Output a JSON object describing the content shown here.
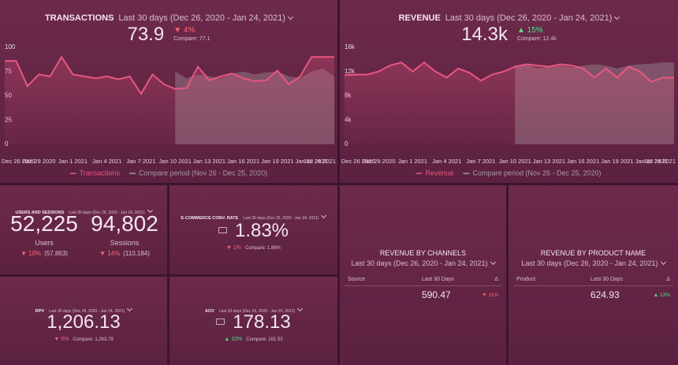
{
  "chart_data": [
    {
      "type": "line",
      "title": "TRANSACTIONS",
      "subtitle": "Last 30 days (Dec 26, 2020 - Jan 24, 2021)",
      "kpi": {
        "value": "73.9",
        "change": "▼ 4%",
        "trend": "down",
        "compare": "Compare: 77.1"
      },
      "categories": [
        "Dec 26 2020",
        null,
        null,
        "Dec 29 2020",
        null,
        null,
        "Jan 1 2021",
        null,
        null,
        "Jan 4 2021",
        null,
        null,
        "Jan 7 2021",
        null,
        null,
        "Jan 10 2021",
        null,
        null,
        "Jan 13 2021",
        null,
        null,
        "Jan 16 2021",
        null,
        null,
        "Jan 19 2021",
        null,
        null,
        "Jan 22 2021",
        null,
        "Jan 24 2021"
      ],
      "series": [
        {
          "name": "Transactions",
          "color": "#e8577f",
          "values": [
            86,
            86,
            60,
            72,
            70,
            90,
            72,
            70,
            68,
            70,
            67,
            70,
            52,
            72,
            62,
            57,
            58,
            80,
            66,
            70,
            73,
            68,
            65,
            66,
            76,
            62,
            70,
            90,
            90,
            90
          ]
        },
        {
          "name": "Compare period (Nov 26 - Dec 25, 2020)",
          "color": "#a89aa2",
          "values": [
            null,
            null,
            null,
            null,
            null,
            null,
            null,
            null,
            null,
            null,
            null,
            null,
            null,
            null,
            null,
            75,
            68,
            72,
            70,
            68,
            73,
            75,
            72,
            74,
            75,
            70,
            68,
            75,
            78,
            70
          ]
        }
      ],
      "ylim": [
        0,
        100
      ],
      "yticks": [
        0,
        25,
        50,
        75,
        100
      ],
      "legend": "bottom"
    },
    {
      "type": "line",
      "title": "REVENUE",
      "subtitle": "Last 30 days (Dec 26, 2020 - Jan 24, 2021)",
      "kpi": {
        "value": "14.3k",
        "change": "▲ 15%",
        "trend": "up",
        "compare": "Compare: 12.4k"
      },
      "categories": [
        "Dec 26 2020",
        null,
        null,
        "Dec 29 2020",
        null,
        null,
        "Jan 1 2021",
        null,
        null,
        "Jan 4 2021",
        null,
        null,
        "Jan 7 2021",
        null,
        null,
        "Jan 10 2021",
        null,
        null,
        "Jan 13 2021",
        null,
        null,
        "Jan 16 2021",
        null,
        null,
        "Jan 19 2021",
        null,
        null,
        "Jan 22 2021",
        null,
        "Jan 24 2021"
      ],
      "series": [
        {
          "name": "Revenue",
          "color": "#e8577f",
          "values": [
            11400,
            11500,
            11500,
            12000,
            13000,
            13500,
            12000,
            13500,
            12000,
            11000,
            12500,
            11800,
            10500,
            11500,
            12000,
            12800,
            13200,
            13000,
            12800,
            13200,
            13000,
            12500,
            11000,
            12500,
            11000,
            12800,
            12000,
            10300,
            11000,
            11000
          ]
        },
        {
          "name": "Compare period (Nov 26 - Dec 25, 2020)",
          "color": "#a89aa2",
          "values": [
            null,
            null,
            null,
            null,
            null,
            null,
            null,
            null,
            null,
            null,
            null,
            null,
            null,
            null,
            null,
            13000,
            13200,
            12500,
            12800,
            13000,
            12700,
            13000,
            13200,
            13000,
            12500,
            13000,
            13200,
            13300,
            13500,
            13500
          ]
        }
      ],
      "ylim": [
        0,
        16000
      ],
      "yticks": [
        0,
        {
          "value": 4000,
          "label": "4k"
        },
        {
          "value": 8000,
          "label": "8k"
        },
        {
          "value": 12000,
          "label": "12k"
        },
        {
          "value": 16000,
          "label": "16k"
        }
      ],
      "legend": "bottom"
    }
  ],
  "users_sessions": {
    "title": "USERS AND SESSIONS",
    "subtitle": "Last 30 days (Dec 26, 2020 - Jan 24, 2021)",
    "metrics": [
      {
        "value": "52,225",
        "label": "Users",
        "change": "▼ 10%",
        "trend": "down",
        "compare": "(57,863)"
      },
      {
        "value": "94,802",
        "label": "Sessions",
        "change": "▼ 14%",
        "trend": "down",
        "compare": "(110,184)"
      }
    ]
  },
  "kpis": [
    {
      "title": "E-COMMERCE CONV. RATE",
      "subtitle": "Last 30 days (Dec 26, 2020 - Jan 24, 2021)",
      "value": "1.83%",
      "change": "▼ 1%",
      "trend": "down",
      "compare": "Compare: 1.86%",
      "icon": true
    },
    {
      "title": "RPV",
      "subtitle": "Last 30 days (Dec 26, 2020 - Jan 24, 2021)",
      "value": "1,206.13",
      "change": "▼ 5%",
      "trend": "down",
      "compare": "Compare: 1,263.79",
      "icon": false
    },
    {
      "title": "AOV",
      "subtitle": "Last 30 days (Dec 26, 2020 - Jan 24, 2021)",
      "value": "178.13",
      "change": "▲ 10%",
      "trend": "up",
      "compare": "Compare: 161.53",
      "icon": true
    }
  ],
  "tables": [
    {
      "title": "REVENUE BY CHANNELS",
      "subtitle": "Last 30 days (Dec 26, 2020 - Jan 24, 2021)",
      "columns": [
        "Source",
        "Last 30 Days",
        "Δ"
      ],
      "row": {
        "value": "590.47",
        "change": "▼ 11%",
        "trend": "down"
      }
    },
    {
      "title": "REVENUE BY PRODUCT NAME",
      "subtitle": "Last 30 days (Dec 26, 2020 - Jan 24, 2021)",
      "columns": [
        "Product",
        "Last 30 Days",
        "Δ"
      ],
      "row": {
        "value": "624.93",
        "change": "▲ 13%",
        "trend": "up"
      }
    }
  ]
}
